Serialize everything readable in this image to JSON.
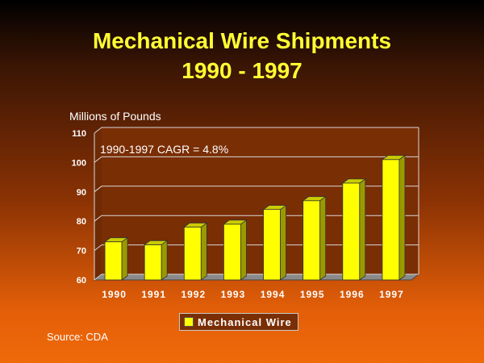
{
  "chart_data": {
    "type": "bar",
    "title": "Mechanical Wire Shipments",
    "subtitle": "1990 - 1997",
    "ylabel": "Millions of Pounds",
    "xlabel": "",
    "categories": [
      "1990",
      "1991",
      "1992",
      "1993",
      "1994",
      "1995",
      "1996",
      "1997"
    ],
    "series": [
      {
        "name": "Mechanical Wire",
        "values": [
          73,
          72,
          78,
          79,
          84,
          87,
          93,
          101
        ]
      }
    ],
    "ylim": [
      60,
      110
    ],
    "yticks": [
      60,
      70,
      80,
      90,
      100,
      110
    ],
    "annotation": "1990-1997 CAGR = 4.8%",
    "grid": true,
    "legend_position": "bottom",
    "bar_color": "#ffff00"
  },
  "source": "Source: CDA"
}
